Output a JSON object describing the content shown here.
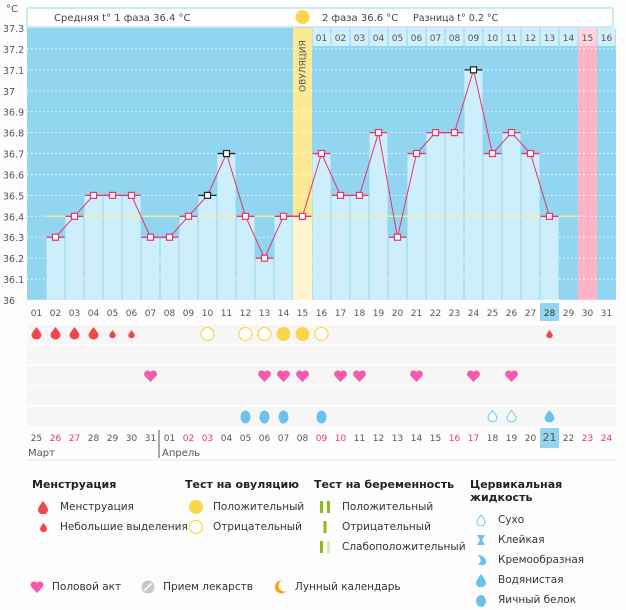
{
  "header": {
    "phase1_label": "Средняя t° 1 фаза 36.4 °C",
    "phase2_label": "2 фаза 36.6 °C",
    "difference_label": "Разница t° 0.2 °C",
    "ovulation_label": "ОВУЛЯЦИЯ",
    "unit_label": "°C"
  },
  "chart_data": {
    "type": "line",
    "title": "",
    "ylabel": "°C",
    "ylim": [
      36.0,
      37.3
    ],
    "yticks": [
      "37.3",
      "37.2",
      "37.1",
      "37",
      "36.9",
      "36.8",
      "36.7",
      "36.6",
      "36.5",
      "36.4",
      "36.3",
      "36.2",
      "36.1",
      "36"
    ],
    "yticks_values": [
      37.3,
      37.2,
      37.1,
      37.0,
      36.9,
      36.8,
      36.7,
      36.6,
      36.5,
      36.4,
      36.3,
      36.2,
      36.1,
      36.0
    ],
    "cycle_days": [
      "01",
      "02",
      "03",
      "04",
      "05",
      "06",
      "07",
      "08",
      "09",
      "10",
      "11",
      "12",
      "13",
      "14",
      "15",
      "16",
      "17",
      "18",
      "19",
      "20",
      "21",
      "22",
      "23",
      "24",
      "25",
      "26",
      "27",
      "28",
      "29",
      "30",
      "31"
    ],
    "temperature": [
      null,
      36.3,
      36.4,
      36.5,
      36.5,
      36.5,
      36.3,
      36.3,
      36.4,
      36.5,
      36.7,
      36.4,
      36.2,
      36.4,
      36.4,
      36.7,
      36.5,
      36.5,
      36.8,
      36.3,
      36.7,
      36.8,
      36.8,
      37.1,
      36.7,
      36.8,
      36.7,
      36.4,
      null,
      null,
      null
    ],
    "excluded_points_days": [
      "10",
      "11",
      "24"
    ],
    "coverline": 36.4,
    "ovulation_day": "15",
    "today_cycle_day": "28",
    "expected_period_day": "30",
    "luteal_days": [
      "01",
      "02",
      "03",
      "04",
      "05",
      "06",
      "07",
      "08",
      "09",
      "10",
      "11",
      "12",
      "13",
      "14",
      "15",
      "16"
    ],
    "luteal_highlight_day": "15",
    "calendar_dates": [
      "25",
      "26",
      "27",
      "28",
      "29",
      "30",
      "31",
      "01",
      "02",
      "03",
      "04",
      "05",
      "06",
      "07",
      "08",
      "09",
      "10",
      "11",
      "12",
      "13",
      "14",
      "15",
      "16",
      "17",
      "18",
      "19",
      "20",
      "21",
      "22",
      "23",
      "24"
    ],
    "weekend_dates_idx": [
      1,
      2,
      8,
      9,
      15,
      16,
      22,
      23,
      29,
      30
    ],
    "today_calendar_date": "21",
    "months": [
      "Март",
      "Апрель"
    ],
    "menstruation": {
      "full": [
        "01",
        "02",
        "03",
        "04"
      ],
      "light": [
        "05",
        "06",
        "28"
      ]
    },
    "ovulation_test": {
      "positive": [
        "14",
        "15"
      ],
      "negative": [
        "10",
        "12",
        "13",
        "16"
      ]
    },
    "intercourse": [
      "07",
      "13",
      "14",
      "15",
      "17",
      "18",
      "21",
      "24",
      "26"
    ],
    "cervical_fluid": {
      "egg_white": [
        "12",
        "13",
        "14",
        "16"
      ],
      "dry": [
        "25",
        "26"
      ],
      "watery": [
        "28"
      ]
    }
  },
  "legend": {
    "menstruation": {
      "title": "Менструация",
      "items": [
        "Менструация",
        "Небольшие выделения"
      ]
    },
    "ovulation_test": {
      "title": "Тест на овуляцию",
      "items": [
        "Положительный",
        "Отрицательный"
      ]
    },
    "pregnancy_test": {
      "title": "Тест на беременность",
      "items": [
        "Положительный",
        "Отрицательный",
        "Слабоположительный"
      ]
    },
    "cervical_fluid": {
      "title": "Цервикальная жидкость",
      "items": [
        "Сухо",
        "Клейкая",
        "Кремообразная",
        "Водянистая",
        "Яичный белок"
      ]
    },
    "bottom": [
      "Половой акт",
      "Прием лекарств",
      "Лунный календарь"
    ]
  },
  "colors": {
    "plot_bg": "#92d5f0",
    "bar_fill": "#cdeefb",
    "line": "#e8336b",
    "coverline": "#f6ee95",
    "ovulation": "#fbe993",
    "expected_period": "#ffb3c6",
    "menstruation": "#f04848",
    "ovulation_test": "#fbd64a",
    "heart": "#f659b0",
    "fluid": "#6ec1ee",
    "pregnancy": "#8cbc14",
    "weekend": "#e8336b"
  }
}
